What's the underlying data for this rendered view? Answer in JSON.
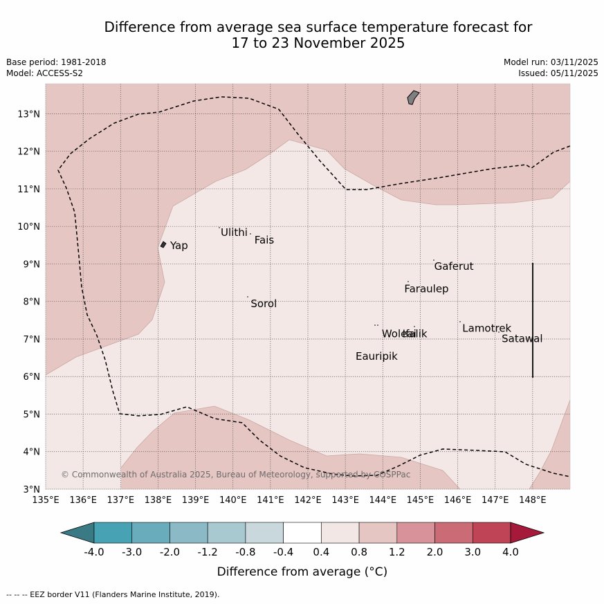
{
  "title_line1": "Difference from average sea surface temperature forecast for",
  "title_line2": "17 to 23 November 2025",
  "base_period": "Base period: 1981-2018",
  "model": "Model: ACCESS-S2",
  "model_run": "Model run: 03/11/2025",
  "issued": "Issued: 05/11/2025",
  "map": {
    "lat_range": [
      3,
      13.8
    ],
    "lon_range": [
      135,
      149
    ],
    "lat_ticks": [
      "3°N",
      "4°N",
      "5°N",
      "6°N",
      "7°N",
      "8°N",
      "9°N",
      "10°N",
      "11°N",
      "12°N",
      "13°N"
    ],
    "lon_ticks": [
      "135°E",
      "136°E",
      "137°E",
      "138°E",
      "139°E",
      "140°E",
      "141°E",
      "142°E",
      "143°E",
      "144°E",
      "145°E",
      "146°E",
      "147°E",
      "148°E"
    ],
    "places": [
      {
        "name": "Yap",
        "lon": 138.25,
        "lat": 9.45
      },
      {
        "name": "Ulithi",
        "lon": 139.6,
        "lat": 9.8
      },
      {
        "name": "Fais",
        "lon": 140.5,
        "lat": 9.6
      },
      {
        "name": "Sorol",
        "lon": 140.4,
        "lat": 7.9
      },
      {
        "name": "Gaferut",
        "lon": 145.3,
        "lat": 8.9
      },
      {
        "name": "Faraulep",
        "lon": 144.5,
        "lat": 8.3
      },
      {
        "name": "Woleai",
        "lon": 143.9,
        "lat": 7.1
      },
      {
        "name": "Ifalik",
        "lon": 144.45,
        "lat": 7.1
      },
      {
        "name": "Eauripik",
        "lon": 143.2,
        "lat": 6.5
      },
      {
        "name": "Lamotrek",
        "lon": 146.05,
        "lat": 7.25
      },
      {
        "name": "Satawal",
        "lon": 147.1,
        "lat": 6.97
      }
    ],
    "copyright": "© Commonwealth of Australia 2025, Bureau of Meteorology, supported by COSPPac"
  },
  "colorbar": {
    "labels": [
      "-4.0",
      "-3.0",
      "-2.0",
      "-1.2",
      "-0.8",
      "-0.4",
      "0.4",
      "0.8",
      "1.2",
      "2.0",
      "3.0",
      "4.0"
    ],
    "colors": [
      "#3a7a85",
      "#47a3b3",
      "#69adbd",
      "#8bb9c6",
      "#a9c9d1",
      "#c9d8dc",
      "#ffffff",
      "#f3e7e6",
      "#e6c6c2",
      "#d8939a",
      "#cb6b76",
      "#bf4556",
      "#a5193a"
    ],
    "title": "Difference from average (°C)"
  },
  "footnote": "--  --  -- EEZ border V11 (Flanders Marine Institute, 2019)."
}
